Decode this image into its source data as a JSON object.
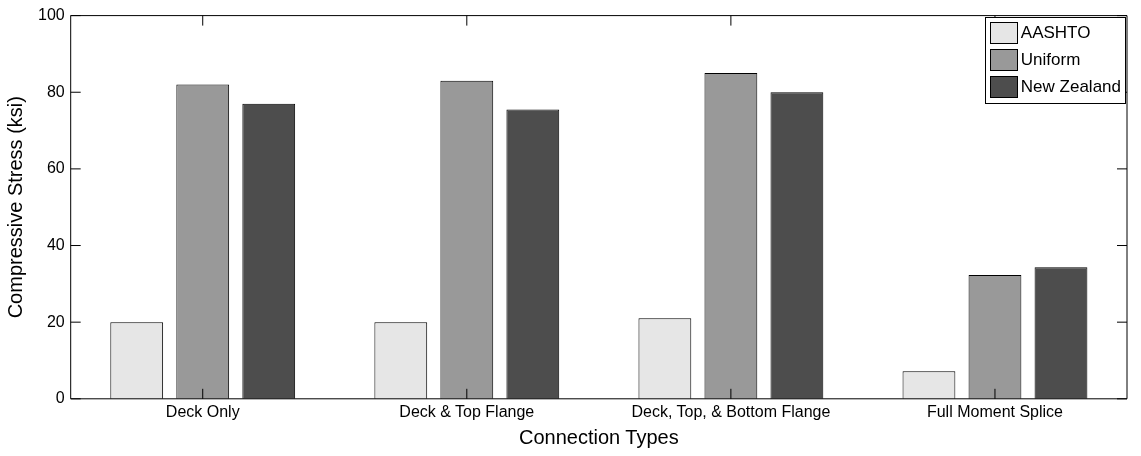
{
  "chart_data": {
    "type": "bar",
    "xlabel": "Connection Types",
    "ylabel": "Compressive Stress (ksi)",
    "categories": [
      "Deck Only",
      "Deck & Top Flange",
      "Deck, Top, & Bottom Flange",
      "Full Moment Splice"
    ],
    "series": [
      {
        "name": "AASHTO",
        "color": "#e6e6e6",
        "values": [
          20,
          20,
          21,
          7.2
        ]
      },
      {
        "name": "Uniform",
        "color": "#999999",
        "values": [
          82,
          83,
          85,
          32.3
        ]
      },
      {
        "name": "New Zealand",
        "color": "#4d4d4d",
        "values": [
          77,
          75.5,
          80,
          34.3
        ]
      }
    ],
    "ylim": [
      0,
      100
    ],
    "yticks": [
      0,
      20,
      40,
      60,
      80,
      100
    ],
    "grid": false,
    "legend": "top right"
  }
}
